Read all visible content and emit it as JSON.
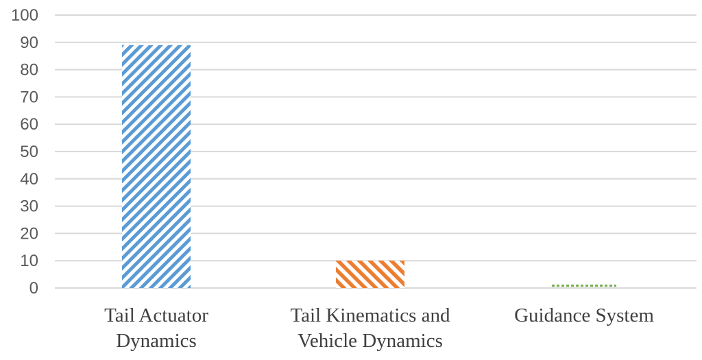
{
  "chart_data": {
    "type": "bar",
    "title": "",
    "xlabel": "",
    "ylabel": "",
    "categories": [
      [
        "Tail Actuator",
        "Dynamics"
      ],
      [
        "Tail Kinematics and",
        "Vehicle Dynamics"
      ],
      [
        "Guidance System"
      ]
    ],
    "values": [
      89,
      10,
      0.6
    ],
    "ylim": [
      0,
      100
    ],
    "yticks": [
      "0",
      "10",
      "20",
      "30",
      "40",
      "50",
      "60",
      "70",
      "80",
      "90",
      "100"
    ],
    "grid": true,
    "legend": "none",
    "colors": [
      "#5b9bd5",
      "#ed7d31",
      "#70ad47"
    ],
    "patterns": [
      "diagonal-stripes",
      "diagonal-stripes",
      "dotted"
    ]
  }
}
